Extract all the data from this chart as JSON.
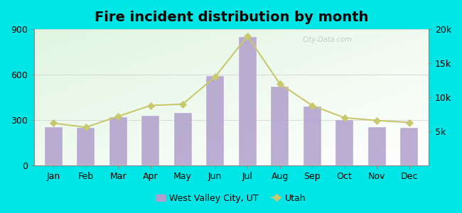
{
  "title": "Fire incident distribution by month",
  "months": [
    "Jan",
    "Feb",
    "Mar",
    "Apr",
    "May",
    "Jun",
    "Jul",
    "Aug",
    "Sep",
    "Oct",
    "Nov",
    "Dec"
  ],
  "bar_values": [
    255,
    250,
    320,
    330,
    345,
    590,
    850,
    520,
    390,
    300,
    255,
    250
  ],
  "line_values": [
    6200,
    5600,
    7200,
    8800,
    9000,
    13000,
    19000,
    12000,
    8800,
    7000,
    6600,
    6300
  ],
  "bar_color": "#b09fcc",
  "bar_edge_color": "#b09fcc",
  "line_color": "#c8c86e",
  "line_marker": "D",
  "line_marker_color": "#c8c86e",
  "line_marker_size": 5,
  "background_color": "#00e5e5",
  "ylim_left": [
    0,
    900
  ],
  "ylim_right": [
    0,
    20000
  ],
  "yticks_left": [
    0,
    300,
    600,
    900
  ],
  "yticks_right": [
    5000,
    10000,
    15000,
    20000
  ],
  "ytick_labels_right": [
    "5k",
    "10k",
    "15k",
    "20k"
  ],
  "grid_color": "#cccccc",
  "title_fontsize": 14,
  "axis_fontsize": 9,
  "legend_label_city": "West Valley City, UT",
  "legend_label_state": "Utah",
  "watermark": "City-Data.com"
}
